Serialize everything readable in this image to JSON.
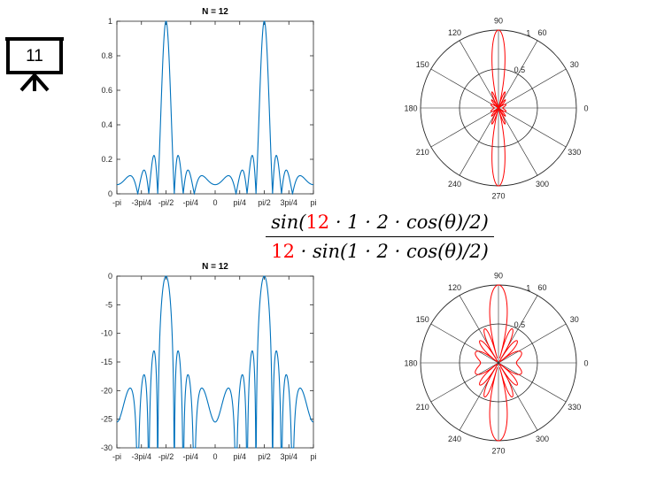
{
  "slide": {
    "number": "11",
    "formula": {
      "numerator": {
        "prefix": "sin(",
        "highlight": "12",
        "suffix": " · 1 · 2 · cos(θ)/2)"
      },
      "denominator": {
        "highlight": "12",
        "suffix": " · sin(1 · 2 · cos(θ)/2)"
      },
      "highlight_color": "#ff0000"
    }
  },
  "chart_data": [
    {
      "type": "line",
      "title": "N = 12",
      "xlabel": "",
      "ylabel": "",
      "x_ticks": [
        "-pi",
        "-3pi/4",
        "-pi/2",
        "-pi/4",
        "0",
        "pi/4",
        "pi/2",
        "3pi/4",
        "pi"
      ],
      "y_ticks": [
        "0",
        "0.2",
        "0.4",
        "0.6",
        "0.8",
        "1"
      ],
      "xlim": [
        -3.1416,
        3.1416
      ],
      "ylim": [
        0,
        1
      ],
      "scale": "linear",
      "formula_params": {
        "N": 12,
        "kd": 2
      },
      "series": [
        {
          "color": "#0072bd"
        }
      ]
    },
    {
      "type": "polar",
      "title": "",
      "angle_labels": [
        "90",
        "120",
        "150",
        "180",
        "210",
        "240",
        "270",
        "300",
        "330",
        "0",
        "30",
        "60"
      ],
      "radial_labels": [
        "0.5",
        "1"
      ],
      "rlim": [
        0,
        1
      ],
      "scale": "linear",
      "formula_params": {
        "N": 12,
        "kd": 2
      },
      "series": [
        {
          "color": "#ff0000"
        }
      ]
    },
    {
      "type": "line",
      "title": "N = 12",
      "xlabel": "",
      "ylabel": "",
      "x_ticks": [
        "-pi",
        "-3pi/4",
        "-pi/2",
        "-pi/4",
        "0",
        "pi/4",
        "pi/2",
        "3pi/4",
        "pi"
      ],
      "y_ticks": [
        "0",
        "-5",
        "-10",
        "-15",
        "-20",
        "-25",
        "-30"
      ],
      "xlim": [
        -3.1416,
        3.1416
      ],
      "ylim": [
        -30,
        0
      ],
      "scale": "dB",
      "formula_params": {
        "N": 12,
        "kd": 2
      },
      "series": [
        {
          "color": "#0072bd"
        }
      ]
    },
    {
      "type": "polar",
      "title": "",
      "angle_labels": [
        "90",
        "120",
        "150",
        "180",
        "210",
        "240",
        "270",
        "300",
        "330",
        "0",
        "30",
        "60"
      ],
      "radial_labels": [
        "0.5",
        "1"
      ],
      "rlim": [
        0,
        1
      ],
      "scale": "sqrt",
      "formula_params": {
        "N": 12,
        "kd": 2
      },
      "series": [
        {
          "color": "#ff0000"
        }
      ]
    }
  ]
}
